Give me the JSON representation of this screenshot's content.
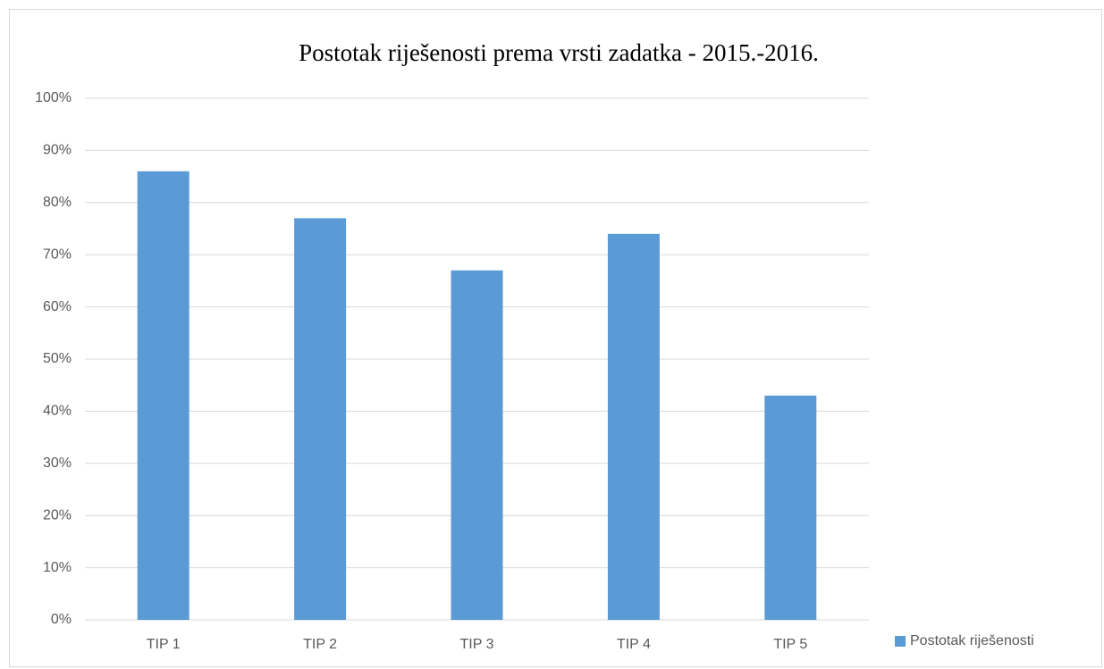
{
  "chart_data": {
    "type": "bar",
    "title": "Postotak riješenosti prema vrsti zadatka - 2015.-2016.",
    "categories": [
      "TIP 1",
      "TIP 2",
      "TIP 3",
      "TIP 4",
      "TIP 5"
    ],
    "series": [
      {
        "name": "Postotak riješenosti",
        "color": "#5b9bd5",
        "values": [
          86,
          77,
          67,
          74,
          43
        ]
      }
    ],
    "ylim": [
      0,
      100
    ],
    "yticks": [
      {
        "value": 0,
        "label": "0%"
      },
      {
        "value": 10,
        "label": "10%"
      },
      {
        "value": 20,
        "label": "20%"
      },
      {
        "value": 30,
        "label": "30%"
      },
      {
        "value": 40,
        "label": "40%"
      },
      {
        "value": 50,
        "label": "50%"
      },
      {
        "value": 60,
        "label": "60%"
      },
      {
        "value": 70,
        "label": "70%"
      },
      {
        "value": 80,
        "label": "80%"
      },
      {
        "value": 90,
        "label": "90%"
      },
      {
        "value": 100,
        "label": "100%"
      }
    ],
    "grid": true,
    "legend": "right"
  }
}
